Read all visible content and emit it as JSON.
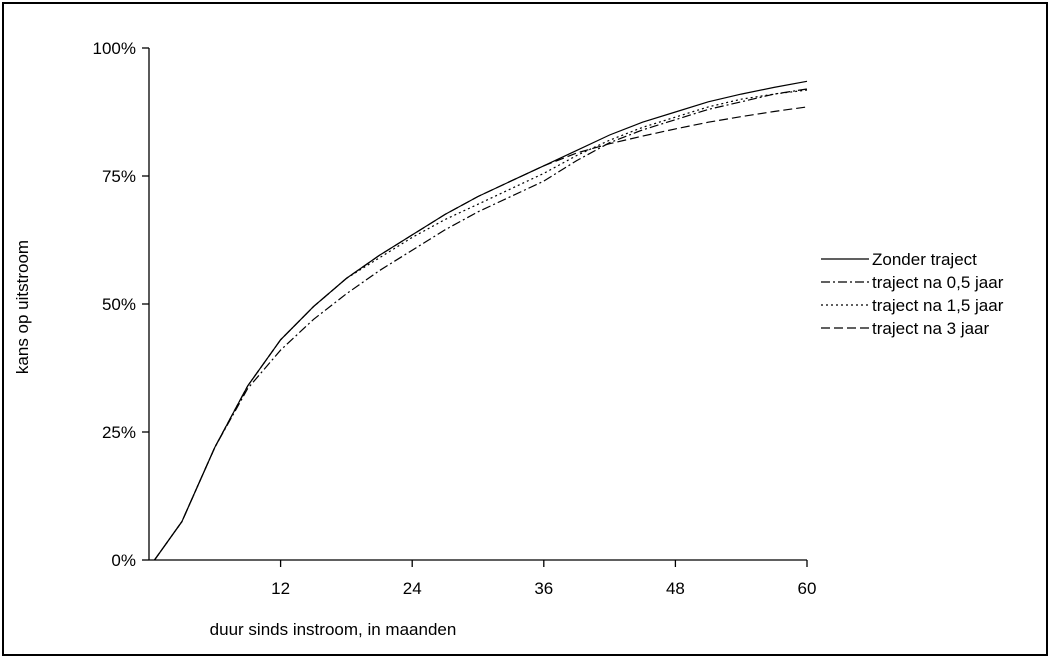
{
  "chart_data": {
    "type": "line",
    "xlabel": "duur sinds instroom, in maanden",
    "ylabel": "kans op uitstroom",
    "xlim": [
      0,
      60
    ],
    "ylim": [
      0,
      100
    ],
    "x_ticks": [
      12,
      24,
      36,
      48,
      60
    ],
    "y_ticks": [
      0,
      25,
      50,
      75,
      100
    ],
    "x_tick_labels": [
      "12",
      "24",
      "36",
      "48",
      "60"
    ],
    "y_tick_labels": [
      "0%",
      "25%",
      "50%",
      "75%",
      "100%"
    ],
    "grid": false,
    "legend_position": "right",
    "series": [
      {
        "name": "Zonder traject",
        "dash": "none",
        "points": [
          [
            0.5,
            0
          ],
          [
            3,
            7.5
          ],
          [
            6,
            22
          ],
          [
            9,
            34
          ],
          [
            12,
            43
          ],
          [
            15,
            49.5
          ],
          [
            18,
            55
          ],
          [
            21,
            59.5
          ],
          [
            24,
            63.5
          ],
          [
            27,
            67.5
          ],
          [
            30,
            71
          ],
          [
            33,
            74
          ],
          [
            36,
            77
          ],
          [
            39,
            80
          ],
          [
            42,
            83
          ],
          [
            45,
            85.5
          ],
          [
            48,
            87.5
          ],
          [
            51,
            89.5
          ],
          [
            54,
            91
          ],
          [
            57,
            92.3
          ],
          [
            60,
            93.5
          ]
        ]
      },
      {
        "name": "traject na 0,5 jaar",
        "dash": "dashdot",
        "points": [
          [
            0.5,
            0
          ],
          [
            3,
            7.5
          ],
          [
            6,
            22
          ],
          [
            9,
            33.5
          ],
          [
            12,
            41
          ],
          [
            15,
            47
          ],
          [
            18,
            52
          ],
          [
            21,
            56.5
          ],
          [
            24,
            60.5
          ],
          [
            27,
            64.5
          ],
          [
            30,
            68
          ],
          [
            33,
            71
          ],
          [
            36,
            74
          ],
          [
            39,
            78
          ],
          [
            42,
            81.5
          ],
          [
            45,
            84
          ],
          [
            48,
            86
          ],
          [
            51,
            88
          ],
          [
            54,
            89.5
          ],
          [
            57,
            91
          ],
          [
            60,
            92
          ]
        ]
      },
      {
        "name": "traject na 1,5 jaar",
        "dash": "dotted",
        "points": [
          [
            0.5,
            0
          ],
          [
            3,
            7.5
          ],
          [
            6,
            22
          ],
          [
            9,
            34
          ],
          [
            12,
            43
          ],
          [
            15,
            49.5
          ],
          [
            18,
            55
          ],
          [
            21,
            59
          ],
          [
            24,
            63
          ],
          [
            27,
            66.5
          ],
          [
            30,
            69.5
          ],
          [
            33,
            72.5
          ],
          [
            36,
            75.5
          ],
          [
            39,
            79
          ],
          [
            42,
            82
          ],
          [
            45,
            84.5
          ],
          [
            48,
            86.5
          ],
          [
            51,
            88.5
          ],
          [
            54,
            90
          ],
          [
            57,
            91
          ],
          [
            60,
            91.8
          ]
        ]
      },
      {
        "name": "traject na 3 jaar",
        "dash": "dashed",
        "points": [
          [
            0.5,
            0
          ],
          [
            3,
            7.5
          ],
          [
            6,
            22
          ],
          [
            9,
            34
          ],
          [
            12,
            43
          ],
          [
            15,
            49.5
          ],
          [
            18,
            55
          ],
          [
            21,
            59.5
          ],
          [
            24,
            63.5
          ],
          [
            27,
            67.5
          ],
          [
            30,
            71
          ],
          [
            33,
            74
          ],
          [
            36,
            77
          ],
          [
            39,
            79.5
          ],
          [
            42,
            81.3
          ],
          [
            45,
            82.8
          ],
          [
            48,
            84.2
          ],
          [
            51,
            85.5
          ],
          [
            54,
            86.6
          ],
          [
            57,
            87.6
          ],
          [
            60,
            88.5
          ]
        ]
      }
    ]
  }
}
